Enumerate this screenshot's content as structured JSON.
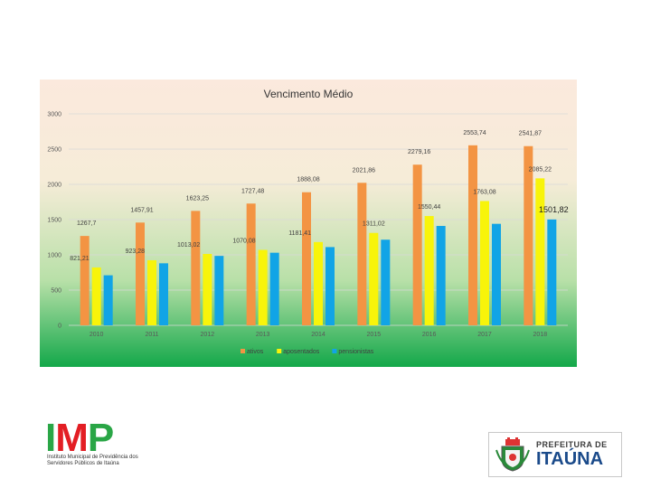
{
  "chart_data": {
    "type": "bar",
    "title": "Vencimento Médio",
    "xlabel": "",
    "ylabel": "",
    "categories": [
      "2010",
      "2011",
      "2012",
      "2013",
      "2014",
      "2015",
      "2016",
      "2017",
      "2018"
    ],
    "ylim": [
      0,
      3000
    ],
    "yticks": [
      "0",
      "500",
      "1000",
      "1500",
      "2000",
      "2500",
      "3000"
    ],
    "grid": true,
    "legend_position": "bottom",
    "series": [
      {
        "name": "ativos",
        "color": "#f39443",
        "values": [
          1267.7,
          1457.91,
          1623.25,
          1727.48,
          1888.08,
          2021.86,
          2279.16,
          2553.74,
          2541.87
        ],
        "labels": [
          "1267,7",
          "1457,91",
          "1623,25",
          "1727,48",
          "1888,08",
          "2021,86",
          "2279,16",
          "2553,74",
          "2541,87"
        ]
      },
      {
        "name": "aposentados",
        "color": "#f8f40a",
        "values": [
          821.21,
          923.28,
          1013.02,
          1070.08,
          1181.41,
          1311.02,
          1550.44,
          1763.08,
          2085.22
        ],
        "labels": [
          "821,21",
          "923,28",
          "1013,02",
          "1070,08",
          "1181,41",
          "1311,02",
          "1550,44",
          "1763,08",
          "2085,22"
        ]
      },
      {
        "name": "pensionistas",
        "color": "#11a4e6",
        "values": [
          710,
          880,
          985,
          1030,
          1110,
          1215,
          1410,
          1440,
          1501.82
        ],
        "labels": [
          "",
          "",
          "",
          "",
          "",
          "",
          "",
          "",
          "1501,82"
        ]
      }
    ]
  },
  "logos": {
    "imp": {
      "i": "I",
      "m": "M",
      "p": "P",
      "caption": "Instituto Municipal de Previdência dos Servidores Públicos de Itaúna"
    },
    "prefeitura": {
      "line1": "PREFEITURA DE",
      "line2": "ITAÚNA"
    }
  }
}
